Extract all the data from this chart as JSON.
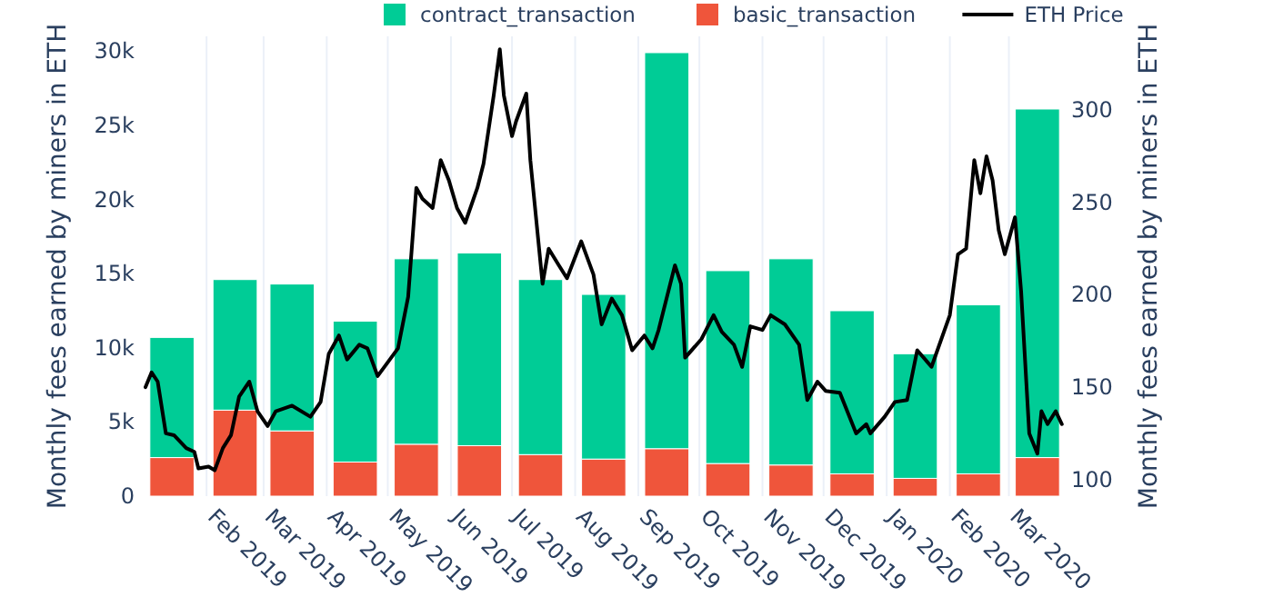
{
  "chart_data": {
    "type": "bar",
    "stacked": true,
    "ylabel": "Monthly fees earned by miners in ETH",
    "y2label": "Monthly fees earned by miners in ETH",
    "x": [
      "2019-01-15",
      "2019-02-15",
      "2019-03-15",
      "2019-04-15",
      "2019-05-15",
      "2019-06-15",
      "2019-07-15",
      "2019-08-15",
      "2019-09-15",
      "2019-10-15",
      "2019-11-15",
      "2019-12-15",
      "2020-01-15",
      "2020-02-15",
      "2020-03-15"
    ],
    "series": [
      {
        "name": "basic_transaction",
        "color": "#ef553b",
        "values": [
          2600,
          5800,
          4400,
          2300,
          3500,
          3400,
          2800,
          2500,
          3200,
          2200,
          2100,
          1500,
          1200,
          1500,
          2600
        ]
      },
      {
        "name": "contract_transaction",
        "color": "#00cc96",
        "values": [
          8100,
          8800,
          9900,
          9500,
          12500,
          13000,
          11800,
          11100,
          26700,
          13000,
          13900,
          11000,
          8400,
          11400,
          23500
        ]
      },
      {
        "name": "ETH Price",
        "type": "line",
        "axis": "y2",
        "color": "#000000",
        "x": [
          "2019-01-02",
          "2019-01-05",
          "2019-01-08",
          "2019-01-12",
          "2019-01-16",
          "2019-01-22",
          "2019-01-26",
          "2019-01-28",
          "2019-02-02",
          "2019-02-05",
          "2019-02-09",
          "2019-02-13",
          "2019-02-17",
          "2019-02-22",
          "2019-02-26",
          "2019-03-03",
          "2019-03-07",
          "2019-03-15",
          "2019-03-24",
          "2019-03-29",
          "2019-04-02",
          "2019-04-07",
          "2019-04-11",
          "2019-04-17",
          "2019-04-21",
          "2019-04-26",
          "2019-05-02",
          "2019-05-06",
          "2019-05-11",
          "2019-05-15",
          "2019-05-18",
          "2019-05-23",
          "2019-05-27",
          "2019-05-31",
          "2019-06-04",
          "2019-06-08",
          "2019-06-14",
          "2019-06-17",
          "2019-06-22",
          "2019-06-25",
          "2019-06-27",
          "2019-07-01",
          "2019-07-03",
          "2019-07-08",
          "2019-07-10",
          "2019-07-16",
          "2019-07-19",
          "2019-07-24",
          "2019-07-28",
          "2019-08-04",
          "2019-08-10",
          "2019-08-14",
          "2019-08-19",
          "2019-08-24",
          "2019-08-29",
          "2019-09-04",
          "2019-09-08",
          "2019-09-11",
          "2019-09-19",
          "2019-09-22",
          "2019-09-24",
          "2019-10-02",
          "2019-10-08",
          "2019-10-12",
          "2019-10-18",
          "2019-10-22",
          "2019-10-26",
          "2019-11-01",
          "2019-11-05",
          "2019-11-12",
          "2019-11-19",
          "2019-11-23",
          "2019-11-28",
          "2019-12-02",
          "2019-12-09",
          "2019-12-17",
          "2019-12-22",
          "2019-12-24",
          "2019-12-31",
          "2020-01-05",
          "2020-01-11",
          "2020-01-16",
          "2020-01-23",
          "2020-02-01",
          "2020-02-05",
          "2020-02-09",
          "2020-02-13",
          "2020-02-16",
          "2020-02-19",
          "2020-02-22",
          "2020-02-25",
          "2020-02-28",
          "2020-03-04",
          "2020-03-07",
          "2020-03-11",
          "2020-03-15",
          "2020-03-17",
          "2020-03-20",
          "2020-03-24",
          "2020-03-27"
        ],
        "values": [
          150,
          158,
          153,
          125,
          124,
          117,
          115,
          106,
          107,
          105,
          117,
          124,
          145,
          153,
          137,
          129,
          137,
          140,
          134,
          142,
          168,
          178,
          165,
          173,
          171,
          156,
          165,
          171,
          199,
          258,
          252,
          247,
          273,
          262,
          247,
          239,
          258,
          271,
          308,
          333,
          308,
          286,
          294,
          309,
          273,
          206,
          225,
          216,
          209,
          229,
          211,
          184,
          198,
          189,
          170,
          178,
          171,
          181,
          216,
          206,
          166,
          176,
          189,
          180,
          173,
          161,
          183,
          181,
          189,
          184,
          173,
          143,
          153,
          148,
          147,
          125,
          130,
          125,
          134,
          142,
          143,
          170,
          161,
          189,
          222,
          225,
          273,
          255,
          275,
          262,
          235,
          222,
          242,
          202,
          125,
          114,
          137,
          130,
          137,
          130
        ]
      }
    ],
    "xlim": [
      "2019-01-02",
      "2020-03-28"
    ],
    "xticks": [
      {
        "value": "2019-02-01",
        "label": "Feb 2019"
      },
      {
        "value": "2019-03-01",
        "label": "Mar 2019"
      },
      {
        "value": "2019-04-01",
        "label": "Apr 2019"
      },
      {
        "value": "2019-05-01",
        "label": "May 2019"
      },
      {
        "value": "2019-06-01",
        "label": "Jun 2019"
      },
      {
        "value": "2019-07-01",
        "label": "Jul 2019"
      },
      {
        "value": "2019-08-01",
        "label": "Aug 2019"
      },
      {
        "value": "2019-09-01",
        "label": "Sep 2019"
      },
      {
        "value": "2019-10-01",
        "label": "Oct 2019"
      },
      {
        "value": "2019-11-01",
        "label": "Nov 2019"
      },
      {
        "value": "2019-12-01",
        "label": "Dec 2019"
      },
      {
        "value": "2020-01-01",
        "label": "Jan 2020"
      },
      {
        "value": "2020-02-01",
        "label": "Feb 2020"
      },
      {
        "value": "2020-03-01",
        "label": "Mar 2020"
      }
    ],
    "ylim": [
      0,
      31000
    ],
    "yticks": [
      0,
      {
        "value": 5000,
        "label": "5k"
      },
      {
        "value": 10000,
        "label": "10k"
      },
      {
        "value": 15000,
        "label": "15k"
      },
      {
        "value": 20000,
        "label": "20k"
      },
      {
        "value": 25000,
        "label": "25k"
      },
      {
        "value": 30000,
        "label": "30k"
      }
    ],
    "y2lim": [
      91,
      340
    ],
    "y2ticks": [
      100,
      150,
      200,
      250,
      300
    ],
    "grid": "x",
    "legend": "top",
    "line_style": "solid"
  }
}
